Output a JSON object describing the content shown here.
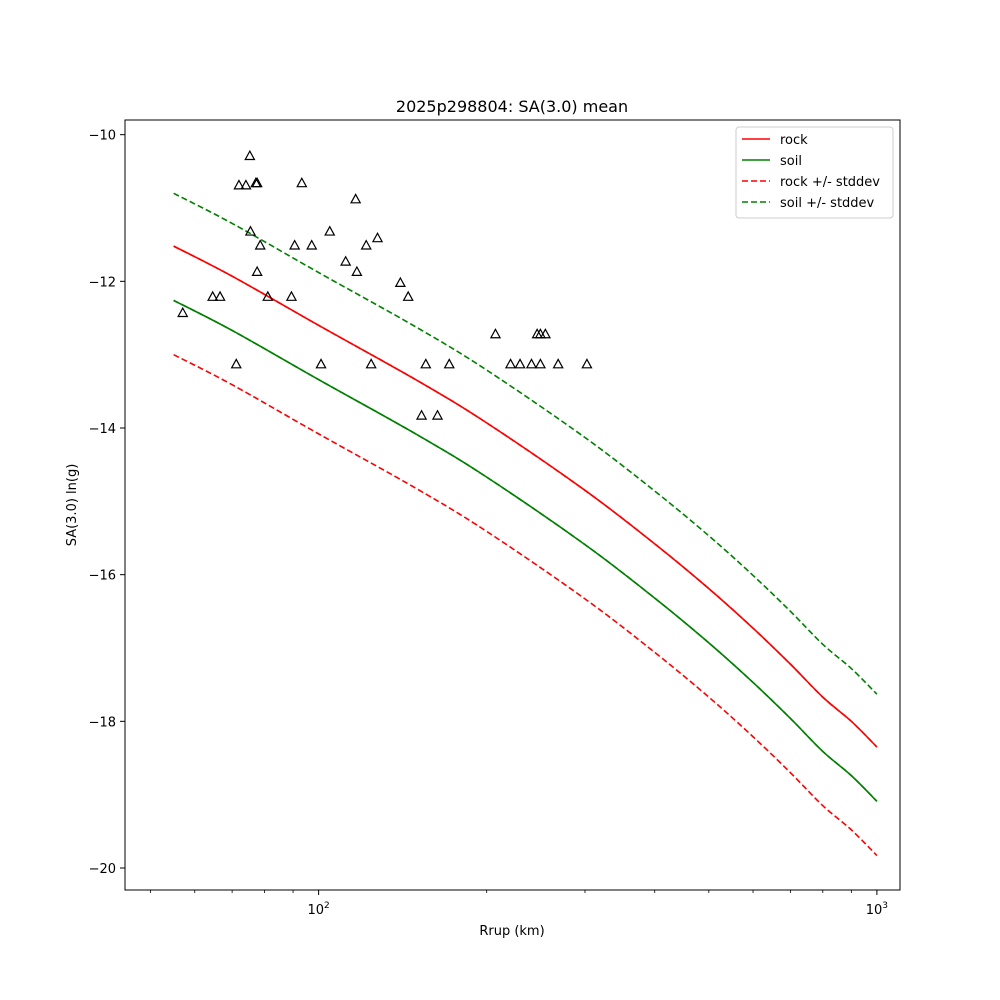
{
  "chart_data": {
    "type": "line",
    "title": "2025p298804: SA(3.0) mean",
    "xlabel": "Rrup (km)",
    "ylabel": "SA(3.0) ln(g)",
    "xscale": "log",
    "xlim": [
      45,
      1100
    ],
    "ylim": [
      -20.3,
      -9.8
    ],
    "x_ticks": [
      {
        "value": 100,
        "base": "10",
        "exp": "2"
      },
      {
        "value": 1000,
        "base": "10",
        "exp": "3"
      }
    ],
    "y_ticks": [
      -10,
      -12,
      -14,
      -16,
      -18,
      -20
    ],
    "grid": false,
    "legend_position": "top-right",
    "series": [
      {
        "name": "rock",
        "color": "#ff0000",
        "style": "solid",
        "x": [
          55,
          70,
          100,
          150,
          200,
          300,
          400,
          500,
          600,
          700,
          800,
          900,
          1000
        ],
        "y": [
          -11.52,
          -11.93,
          -12.6,
          -13.35,
          -13.93,
          -14.85,
          -15.58,
          -16.19,
          -16.73,
          -17.22,
          -17.67,
          -18.0,
          -18.35
        ]
      },
      {
        "name": "soil",
        "color": "#008000",
        "style": "solid",
        "x": [
          55,
          70,
          100,
          150,
          200,
          300,
          400,
          500,
          600,
          700,
          800,
          900,
          1000
        ],
        "y": [
          -12.26,
          -12.67,
          -13.34,
          -14.09,
          -14.67,
          -15.59,
          -16.32,
          -16.93,
          -17.47,
          -17.96,
          -18.41,
          -18.74,
          -19.09
        ]
      },
      {
        "name": "rock +/- stddev",
        "color": "#ff0000",
        "style": "dashed",
        "x": [
          55,
          70,
          100,
          150,
          200,
          300,
          400,
          500,
          600,
          700,
          800,
          900,
          1000
        ],
        "y": [
          -13.0,
          -13.41,
          -14.08,
          -14.83,
          -15.41,
          -16.33,
          -17.06,
          -17.67,
          -18.21,
          -18.7,
          -19.15,
          -19.48,
          -19.83
        ]
      },
      {
        "name": "",
        "color": "#ff0000",
        "style": "dashed",
        "x": [
          55,
          70,
          100,
          150,
          200,
          300,
          400,
          500,
          600,
          700,
          800,
          900,
          1000
        ],
        "y": [
          -11.52,
          -11.93,
          -12.6,
          -13.35,
          -13.93,
          -14.85,
          -15.58,
          -16.19,
          -16.73,
          -17.22,
          -17.67,
          -18.0,
          -18.35
        ]
      },
      {
        "name": "soil +/- stddev",
        "color": "#008000",
        "style": "dashed",
        "x": [
          55,
          70,
          100,
          150,
          200,
          300,
          400,
          500,
          600,
          700,
          800,
          900,
          1000
        ],
        "y": [
          -10.8,
          -11.21,
          -11.88,
          -12.63,
          -13.21,
          -14.13,
          -14.86,
          -15.47,
          -16.01,
          -16.5,
          -16.95,
          -17.28,
          -17.63
        ]
      },
      {
        "name": "",
        "color": "#008000",
        "style": "dashed",
        "x": [
          55,
          70,
          100,
          150,
          200,
          300,
          400,
          500,
          600,
          700,
          800,
          900,
          1000
        ],
        "y": [
          -12.26,
          -12.67,
          -13.34,
          -14.09,
          -14.67,
          -15.59,
          -16.32,
          -16.93,
          -17.47,
          -17.96,
          -18.41,
          -18.74,
          -19.09
        ]
      }
    ],
    "legend": [
      {
        "label": "rock",
        "color": "#ff0000",
        "style": "solid"
      },
      {
        "label": "soil",
        "color": "#008000",
        "style": "solid"
      },
      {
        "label": "rock +/- stddev",
        "color": "#ff0000",
        "style": "dashed"
      },
      {
        "label": "soil +/- stddev",
        "color": "#008000",
        "style": "dashed"
      }
    ],
    "observations": {
      "marker": "triangle",
      "color": "#000000",
      "points": [
        [
          57.1,
          -12.43
        ],
        [
          64.6,
          -12.21
        ],
        [
          66.6,
          -12.21
        ],
        [
          71.2,
          -13.13
        ],
        [
          72.0,
          -10.69
        ],
        [
          74.1,
          -10.69
        ],
        [
          75.3,
          -10.29
        ],
        [
          75.5,
          -11.32
        ],
        [
          77.2,
          -10.66
        ],
        [
          77.6,
          -11.87
        ],
        [
          77.6,
          -10.66
        ],
        [
          78.6,
          -11.51
        ],
        [
          81.1,
          -12.21
        ],
        [
          89.4,
          -12.21
        ],
        [
          90.6,
          -11.51
        ],
        [
          93.3,
          -10.66
        ],
        [
          97.2,
          -11.51
        ],
        [
          101.0,
          -13.13
        ],
        [
          104.7,
          -11.32
        ],
        [
          111.8,
          -11.73
        ],
        [
          116.5,
          -10.88
        ],
        [
          117.1,
          -11.87
        ],
        [
          121.7,
          -11.51
        ],
        [
          124.2,
          -13.13
        ],
        [
          127.5,
          -11.41
        ],
        [
          140.1,
          -12.02
        ],
        [
          144.7,
          -12.21
        ],
        [
          152.9,
          -13.83
        ],
        [
          155.6,
          -13.13
        ],
        [
          163.3,
          -13.83
        ],
        [
          171.4,
          -13.13
        ],
        [
          207.4,
          -12.72
        ],
        [
          220.7,
          -13.13
        ],
        [
          229.5,
          -13.13
        ],
        [
          240.6,
          -13.13
        ],
        [
          246.3,
          -12.72
        ],
        [
          249.6,
          -12.72
        ],
        [
          249.6,
          -13.13
        ],
        [
          254.8,
          -12.72
        ],
        [
          268.6,
          -13.13
        ],
        [
          302.4,
          -13.13
        ]
      ]
    }
  }
}
